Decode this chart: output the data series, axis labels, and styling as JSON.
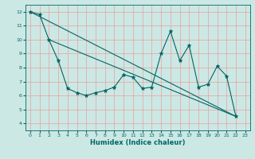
{
  "xlabel": "Humidex (Indice chaleur)",
  "bg_color": "#cce8e4",
  "line_color": "#006666",
  "grid_color": "#e8a0a0",
  "xlim": [
    -0.5,
    23.5
  ],
  "ylim": [
    3.5,
    12.5
  ],
  "yticks": [
    4,
    5,
    6,
    7,
    8,
    9,
    10,
    11,
    12
  ],
  "xticks": [
    0,
    1,
    2,
    3,
    4,
    5,
    6,
    7,
    8,
    9,
    10,
    11,
    12,
    13,
    14,
    15,
    16,
    17,
    18,
    19,
    20,
    21,
    22,
    23
  ],
  "series1_x": [
    0,
    1,
    2,
    3,
    4,
    5,
    6,
    7,
    8,
    9,
    10,
    11,
    12,
    13,
    14,
    15,
    16,
    17,
    18,
    19,
    20,
    21,
    22
  ],
  "series1_y": [
    12.0,
    11.8,
    10.0,
    8.5,
    6.5,
    6.2,
    6.0,
    6.2,
    6.35,
    6.6,
    7.5,
    7.3,
    6.5,
    6.6,
    9.0,
    10.6,
    8.5,
    9.6,
    6.6,
    6.8,
    8.1,
    7.4,
    4.5
  ],
  "trend1_x": [
    0,
    22
  ],
  "trend1_y": [
    12.0,
    4.5
  ],
  "trend2_x": [
    2,
    22
  ],
  "trend2_y": [
    10.0,
    4.5
  ]
}
